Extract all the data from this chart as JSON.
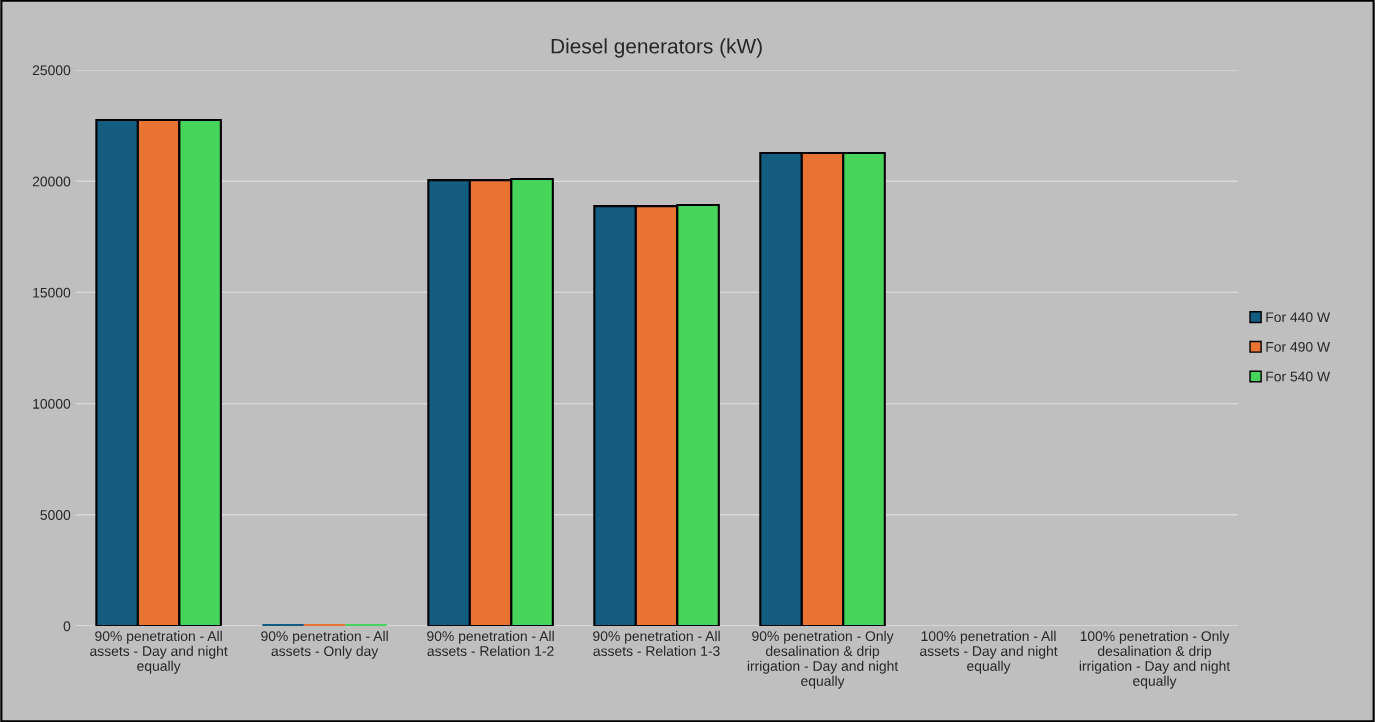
{
  "chart_data": {
    "type": "bar",
    "title": "Diesel generators (kW)",
    "categories": [
      "90% penetration - All assets - Day and night equally",
      "90% penetration - All assets - Only day",
      "90% penetration - All assets - Relation 1-2",
      "90% penetration - All assets - Relation 1-3",
      "90% penetration - Only desalination & drip irrigation - Day and night equally",
      "100% penetration - All assets - Day and night equally",
      "100% penetration - Only desalination & drip irrigation - Day and night equally"
    ],
    "series": [
      {
        "name": "For 440 W",
        "color": "#155d80",
        "values": [
          22750,
          0,
          20050,
          18880,
          21270,
          null,
          null
        ]
      },
      {
        "name": "For 490 W",
        "color": "#e97333",
        "values": [
          22750,
          0,
          20050,
          18880,
          21270,
          null,
          null
        ]
      },
      {
        "name": "For 540 W",
        "color": "#46d45b",
        "values": [
          22750,
          0,
          20100,
          18930,
          21270,
          null,
          null
        ]
      }
    ],
    "ylim": [
      0,
      25000
    ],
    "yticks": [
      0,
      5000,
      10000,
      15000,
      20000,
      25000
    ],
    "grid": "y",
    "legend": "right"
  }
}
